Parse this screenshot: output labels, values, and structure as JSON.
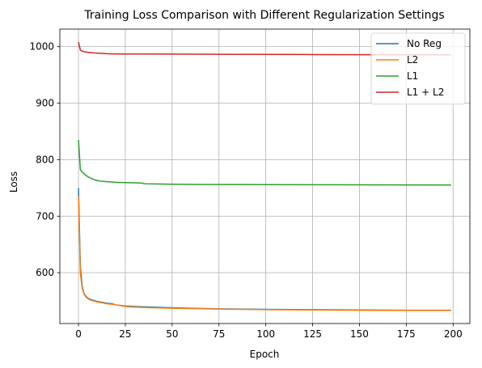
{
  "chart_data": {
    "type": "line",
    "title": "Training Loss Comparison with Different Regularization Settings",
    "xlabel": "Epoch",
    "ylabel": "Loss",
    "xlim": [
      -9.95,
      208.95
    ],
    "ylim": [
      510,
      1031
    ],
    "xticks": [
      0,
      25,
      50,
      75,
      100,
      125,
      150,
      175,
      200
    ],
    "yticks": [
      600,
      700,
      800,
      900,
      1000
    ],
    "grid": true,
    "legend_position": "top-right",
    "series": [
      {
        "name": "No Reg",
        "color": "#1f77b4",
        "x": [
          0,
          1,
          2,
          3,
          4,
          5,
          6,
          8,
          10,
          12,
          15,
          18,
          20,
          25,
          30,
          40,
          50,
          60,
          75,
          100,
          125,
          150,
          175,
          199
        ],
        "y": [
          750,
          610,
          575,
          563,
          558,
          555,
          553,
          551,
          549,
          548,
          546,
          545,
          543,
          541,
          540,
          539,
          538,
          537,
          536,
          535,
          534.5,
          534,
          533.5,
          533.5
        ]
      },
      {
        "name": "L2",
        "color": "#ff7f0e",
        "x": [
          0,
          1,
          2,
          3,
          4,
          5,
          6,
          8,
          10,
          12,
          15,
          18,
          20,
          25,
          30,
          40,
          50,
          60,
          75,
          100,
          125,
          150,
          175,
          199
        ],
        "y": [
          735,
          598,
          572,
          562,
          557,
          554,
          552,
          550,
          548,
          547,
          545,
          544,
          543,
          540,
          539,
          538,
          537,
          536.5,
          535.5,
          534.5,
          534,
          533.5,
          533,
          533
        ]
      },
      {
        "name": "L1",
        "color": "#2ca02c",
        "x": [
          0,
          1,
          2,
          3,
          4,
          5,
          6,
          8,
          10,
          12,
          15,
          18,
          20,
          25,
          30,
          34,
          35,
          36,
          40,
          50,
          60,
          75,
          100,
          125,
          150,
          175,
          199
        ],
        "y": [
          835,
          782,
          778,
          775,
          772,
          770,
          768,
          765,
          763,
          762,
          761,
          760.5,
          760,
          759.5,
          759,
          758.5,
          757.5,
          757.2,
          757,
          756.5,
          756.2,
          756,
          755.8,
          755.6,
          755.5,
          755.3,
          755.2
        ]
      },
      {
        "name": "L1 + L2",
        "color": "#d62728",
        "x": [
          0,
          1,
          2,
          3,
          5,
          8,
          10,
          15,
          20,
          25,
          50,
          75,
          100,
          125,
          150,
          175,
          199
        ],
        "y": [
          1008,
          994,
          992,
          991,
          990,
          989,
          988.5,
          987.5,
          987,
          987,
          986.8,
          986.5,
          986.2,
          986,
          985.8,
          985.7,
          985.6
        ]
      }
    ]
  }
}
